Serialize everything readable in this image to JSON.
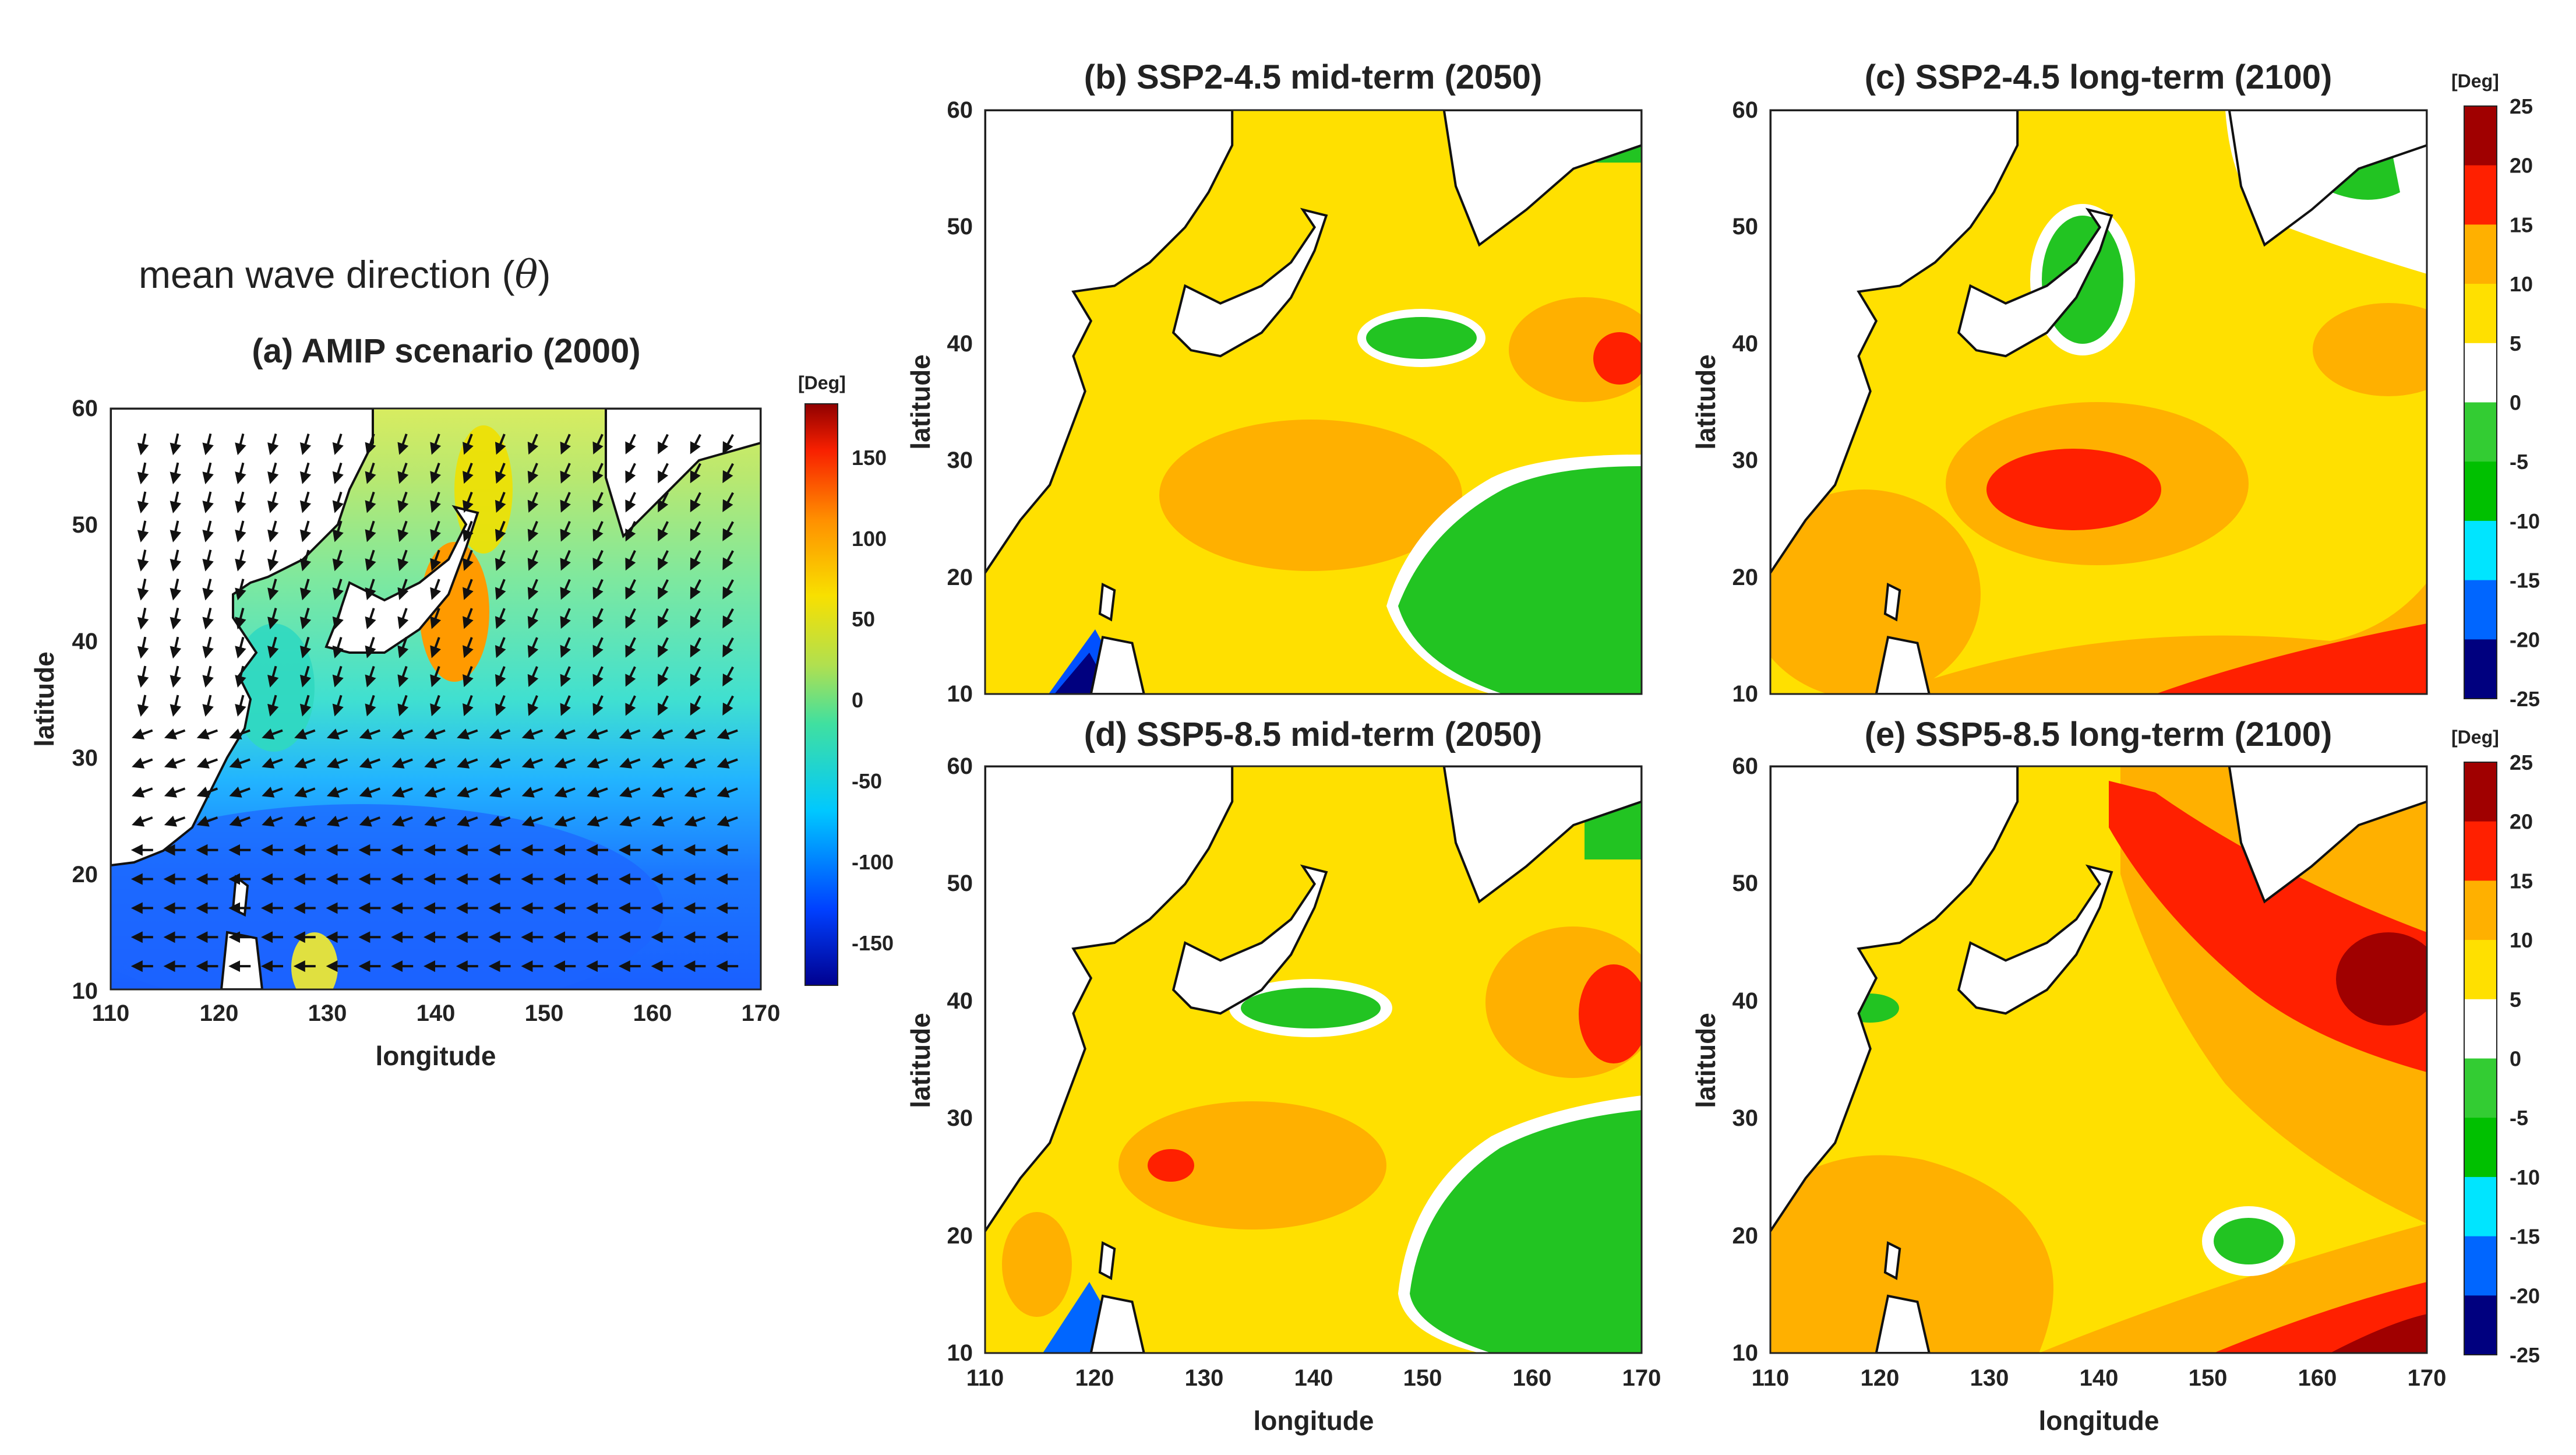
{
  "figure": {
    "supertitle": "mean wave direction (",
    "supertitle_symbol": "θ",
    "supertitle_end": ")"
  },
  "colors": {
    "wave_scale": [
      "#00008f",
      "#0050ff",
      "#00c8ff",
      "#40e0a0",
      "#a8e060",
      "#f8e000",
      "#ff9000",
      "#f82000",
      "#900000"
    ],
    "change_levels": [
      "#00007f",
      "#0066ff",
      "#00e5ff",
      "#00c000",
      "#33cc33",
      "#ffffff",
      "#ffe000",
      "#ffb000",
      "#ff2000",
      "#a00000"
    ],
    "land": "#ffffff",
    "coast": "#111111",
    "arrow": "#111111"
  },
  "chart_data": [
    {
      "id": "a",
      "type": "heatmap",
      "title": "(a) AMIP scenario (2000)",
      "variable": "mean wave direction",
      "xlabel": "longitude",
      "ylabel": "latitude",
      "xlim": [
        110,
        170
      ],
      "ylim": [
        10,
        60
      ],
      "xticks": [
        "110",
        "120",
        "130",
        "140",
        "150",
        "160",
        "170"
      ],
      "yticks": [
        "10",
        "20",
        "30",
        "40",
        "50",
        "60"
      ],
      "colorbar": {
        "unit": "[Deg]",
        "range": [
          -180,
          180
        ],
        "ticks": [
          "150",
          "100",
          "50",
          "0",
          "-50",
          "-100",
          "-150"
        ]
      },
      "vector_field": "wave direction arrows",
      "regions": [
        {
          "name": "low latitudes (10-22N)",
          "value": -95
        },
        {
          "name": "subtropics (22-32N)",
          "value": -40
        },
        {
          "name": "mid latitudes east of Japan",
          "value": 10
        },
        {
          "name": "Sea of Japan",
          "value": 70
        },
        {
          "name": "northeast basin",
          "value": 25
        }
      ]
    },
    {
      "id": "b",
      "type": "heatmap",
      "title": "(b) SSP2-4.5 mid-term (2050)",
      "xlabel": "",
      "ylabel": "latitude",
      "xlim": [
        110,
        170
      ],
      "ylim": [
        10,
        60
      ],
      "xticks": [],
      "yticks": [
        "10",
        "20",
        "30",
        "40",
        "50",
        "60"
      ],
      "regions": [
        {
          "name": "background",
          "value": 5
        },
        {
          "name": "south of Japan",
          "value": 10
        },
        {
          "name": "east 38N",
          "value": 10
        },
        {
          "name": "east core 39N",
          "value": 18
        },
        {
          "name": "southeast basin",
          "value": -4
        },
        {
          "name": "east of Japan",
          "value": -4
        },
        {
          "name": "Philippine coast",
          "value": -22
        }
      ]
    },
    {
      "id": "c",
      "type": "heatmap",
      "title": "(c) SSP2-4.5 long-term (2100)",
      "xlabel": "",
      "ylabel": "latitude",
      "xlim": [
        110,
        170
      ],
      "ylim": [
        10,
        60
      ],
      "xticks": [],
      "yticks": [
        "10",
        "20",
        "30",
        "40",
        "50",
        "60"
      ],
      "colorbar": {
        "unit": "[Deg]",
        "range": [
          -25,
          25
        ],
        "ticks": [
          "25",
          "20",
          "15",
          "10",
          "5",
          "0",
          "-5",
          "-10",
          "-15",
          "-20",
          "-25"
        ]
      },
      "regions": [
        {
          "name": "background",
          "value": 5
        },
        {
          "name": "south of Japan core",
          "value": 18
        },
        {
          "name": "south of Japan",
          "value": 10
        },
        {
          "name": "southwest",
          "value": 10
        },
        {
          "name": "low-latitude band",
          "value": 15
        },
        {
          "name": "southeast corner",
          "value": 22
        },
        {
          "name": "Sea of Japan",
          "value": -4
        },
        {
          "name": "northeast",
          "value": -4
        }
      ]
    },
    {
      "id": "d",
      "type": "heatmap",
      "title": "(d) SSP5-8.5 mid-term (2050)",
      "xlabel": "longitude",
      "ylabel": "latitude",
      "xlim": [
        110,
        170
      ],
      "ylim": [
        10,
        60
      ],
      "xticks": [
        "110",
        "120",
        "130",
        "140",
        "150",
        "160",
        "170"
      ],
      "yticks": [
        "10",
        "20",
        "30",
        "40",
        "50",
        "60"
      ],
      "regions": [
        {
          "name": "background",
          "value": 5
        },
        {
          "name": "south of Japan",
          "value": 10
        },
        {
          "name": "south of Japan core",
          "value": 18
        },
        {
          "name": "east 38N",
          "value": 10
        },
        {
          "name": "east core",
          "value": 18
        },
        {
          "name": "southeast basin",
          "value": -4
        },
        {
          "name": "Sea of Japan",
          "value": -4
        },
        {
          "name": "Philippine coast",
          "value": -22
        }
      ]
    },
    {
      "id": "e",
      "type": "heatmap",
      "title": "(e) SSP5-8.5 long-term (2100)",
      "xlabel": "longitude",
      "ylabel": "latitude",
      "xlim": [
        110,
        170
      ],
      "ylim": [
        10,
        60
      ],
      "xticks": [
        "110",
        "120",
        "130",
        "140",
        "150",
        "160",
        "170"
      ],
      "yticks": [
        "10",
        "20",
        "30",
        "40",
        "50",
        "60"
      ],
      "colorbar": {
        "unit": "[Deg]",
        "range": [
          -25,
          25
        ],
        "ticks": [
          "25",
          "20",
          "15",
          "10",
          "5",
          "0",
          "-5",
          "-10",
          "-15",
          "-20",
          "-25"
        ]
      },
      "regions": [
        {
          "name": "background",
          "value": 5
        },
        {
          "name": "eastern band",
          "value": 10
        },
        {
          "name": "NE diagonal band",
          "value": 18
        },
        {
          "name": "NE core",
          "value": 23
        },
        {
          "name": "southeast corner",
          "value": 22
        },
        {
          "name": "southwest",
          "value": 10
        },
        {
          "name": "small patch 20N 152E",
          "value": -4
        }
      ]
    }
  ]
}
